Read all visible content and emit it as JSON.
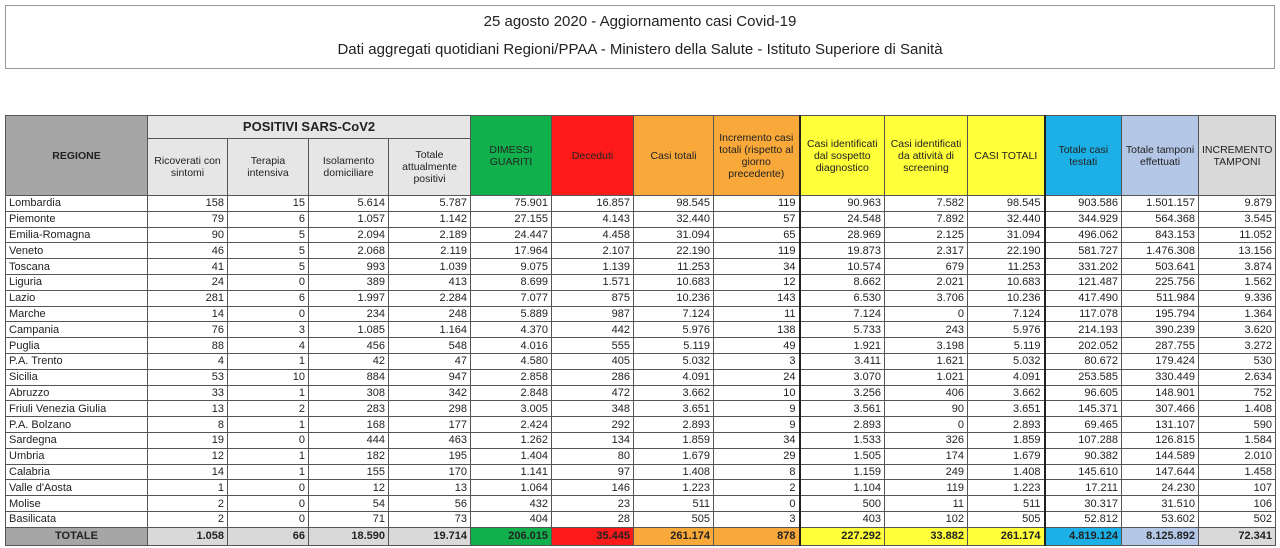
{
  "title": {
    "line1": "25 agosto 2020 - Aggiornamento casi Covid-19",
    "line2": "Dati aggregati quotidiani Regioni/PPAA - Ministero della Salute - Istituto Superiore di Sanità"
  },
  "colors": {
    "dimessi": "#12b04c",
    "deceduti": "#ff1a1a",
    "casi": "#f9a83a",
    "screening": "#ffff3a",
    "testati": "#1db0e6",
    "tamponi": "#b4c7e7",
    "incremento_tamponi": "#d9d9d9"
  },
  "table": {
    "header": {
      "regione": "REGIONE",
      "positivi": "POSITIVI SARS-CoV2",
      "columns": [
        "Ricoverati con sintomi",
        "Terapia intensiva",
        "Isolamento domiciliare",
        "Totale attualmente positivi",
        "DIMESSI GUARITI",
        "Deceduti",
        "Casi totali",
        "Incremento casi totali (rispetto al giorno precedente)",
        "Casi identificati dal sospetto diagnostico",
        "Casi identificati da attività di screening",
        "CASI TOTALI",
        "Totale casi testati",
        "Totale tamponi effettuati",
        "INCREMENTO TAMPONI"
      ]
    },
    "rows": [
      [
        "Lombardia",
        "158",
        "15",
        "5.614",
        "5.787",
        "75.901",
        "16.857",
        "98.545",
        "119",
        "90.963",
        "7.582",
        "98.545",
        "903.586",
        "1.501.157",
        "9.879"
      ],
      [
        "Piemonte",
        "79",
        "6",
        "1.057",
        "1.142",
        "27.155",
        "4.143",
        "32.440",
        "57",
        "24.548",
        "7.892",
        "32.440",
        "344.929",
        "564.368",
        "3.545"
      ],
      [
        "Emilia-Romagna",
        "90",
        "5",
        "2.094",
        "2.189",
        "24.447",
        "4.458",
        "31.094",
        "65",
        "28.969",
        "2.125",
        "31.094",
        "496.062",
        "843.153",
        "11.052"
      ],
      [
        "Veneto",
        "46",
        "5",
        "2.068",
        "2.119",
        "17.964",
        "2.107",
        "22.190",
        "119",
        "19.873",
        "2.317",
        "22.190",
        "581.727",
        "1.476.308",
        "13.156"
      ],
      [
        "Toscana",
        "41",
        "5",
        "993",
        "1.039",
        "9.075",
        "1.139",
        "11.253",
        "34",
        "10.574",
        "679",
        "11.253",
        "331.202",
        "503.641",
        "3.874"
      ],
      [
        "Liguria",
        "24",
        "0",
        "389",
        "413",
        "8.699",
        "1.571",
        "10.683",
        "12",
        "8.662",
        "2.021",
        "10.683",
        "121.487",
        "225.756",
        "1.562"
      ],
      [
        "Lazio",
        "281",
        "6",
        "1.997",
        "2.284",
        "7.077",
        "875",
        "10.236",
        "143",
        "6.530",
        "3.706",
        "10.236",
        "417.490",
        "511.984",
        "9.336"
      ],
      [
        "Marche",
        "14",
        "0",
        "234",
        "248",
        "5.889",
        "987",
        "7.124",
        "11",
        "7.124",
        "0",
        "7.124",
        "117.078",
        "195.794",
        "1.364"
      ],
      [
        "Campania",
        "76",
        "3",
        "1.085",
        "1.164",
        "4.370",
        "442",
        "5.976",
        "138",
        "5.733",
        "243",
        "5.976",
        "214.193",
        "390.239",
        "3.620"
      ],
      [
        "Puglia",
        "88",
        "4",
        "456",
        "548",
        "4.016",
        "555",
        "5.119",
        "49",
        "1.921",
        "3.198",
        "5.119",
        "202.052",
        "287.755",
        "3.272"
      ],
      [
        "P.A. Trento",
        "4",
        "1",
        "42",
        "47",
        "4.580",
        "405",
        "5.032",
        "3",
        "3.411",
        "1.621",
        "5.032",
        "80.672",
        "179.424",
        "530"
      ],
      [
        "Sicilia",
        "53",
        "10",
        "884",
        "947",
        "2.858",
        "286",
        "4.091",
        "24",
        "3.070",
        "1.021",
        "4.091",
        "253.585",
        "330.449",
        "2.634"
      ],
      [
        "Abruzzo",
        "33",
        "1",
        "308",
        "342",
        "2.848",
        "472",
        "3.662",
        "10",
        "3.256",
        "406",
        "3.662",
        "96.605",
        "148.901",
        "752"
      ],
      [
        "Friuli Venezia Giulia",
        "13",
        "2",
        "283",
        "298",
        "3.005",
        "348",
        "3.651",
        "9",
        "3.561",
        "90",
        "3.651",
        "145.371",
        "307.466",
        "1.408"
      ],
      [
        "P.A. Bolzano",
        "8",
        "1",
        "168",
        "177",
        "2.424",
        "292",
        "2.893",
        "9",
        "2.893",
        "0",
        "2.893",
        "69.465",
        "131.107",
        "590"
      ],
      [
        "Sardegna",
        "19",
        "0",
        "444",
        "463",
        "1.262",
        "134",
        "1.859",
        "34",
        "1.533",
        "326",
        "1.859",
        "107.288",
        "126.815",
        "1.584"
      ],
      [
        "Umbria",
        "12",
        "1",
        "182",
        "195",
        "1.404",
        "80",
        "1.679",
        "29",
        "1.505",
        "174",
        "1.679",
        "90.382",
        "144.589",
        "2.010"
      ],
      [
        "Calabria",
        "14",
        "1",
        "155",
        "170",
        "1.141",
        "97",
        "1.408",
        "8",
        "1.159",
        "249",
        "1.408",
        "145.610",
        "147.644",
        "1.458"
      ],
      [
        "Valle d'Aosta",
        "1",
        "0",
        "12",
        "13",
        "1.064",
        "146",
        "1.223",
        "2",
        "1.104",
        "119",
        "1.223",
        "17.211",
        "24.230",
        "107"
      ],
      [
        "Molise",
        "2",
        "0",
        "54",
        "56",
        "432",
        "23",
        "511",
        "0",
        "500",
        "11",
        "511",
        "30.317",
        "31.510",
        "106"
      ],
      [
        "Basilicata",
        "2",
        "0",
        "71",
        "73",
        "404",
        "28",
        "505",
        "3",
        "403",
        "102",
        "505",
        "52.812",
        "53.602",
        "502"
      ]
    ],
    "totals": [
      "TOTALE",
      "1.058",
      "66",
      "18.590",
      "19.714",
      "206.015",
      "35.445",
      "261.174",
      "878",
      "227.292",
      "33.882",
      "261.174",
      "4.819.124",
      "8.125.892",
      "72.341"
    ]
  }
}
